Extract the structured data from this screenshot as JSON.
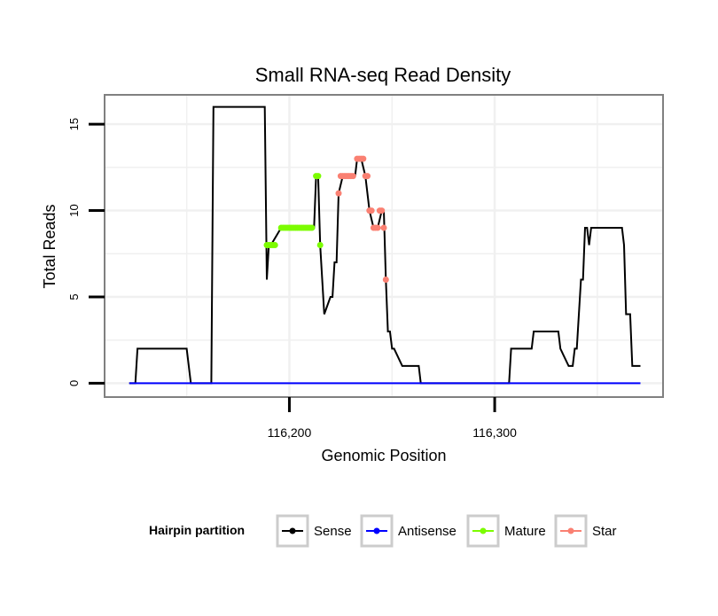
{
  "chart_data": {
    "type": "line",
    "title": "Small RNA-seq Read Density",
    "xlabel": "Genomic Position",
    "ylabel": "Total Reads",
    "xlim": [
      116110,
      116382
    ],
    "ylim": [
      -0.8,
      16.7
    ],
    "xticks": [
      116200,
      116300
    ],
    "xtick_labels": [
      "116,200",
      "116,300"
    ],
    "yticks": [
      0,
      5,
      10,
      15
    ],
    "ytick_labels": [
      "0",
      "5",
      "10",
      "15"
    ],
    "grid": true,
    "legend": {
      "title": "Hairpin partition",
      "position": "bottom",
      "entries": [
        "Sense",
        "Antisense",
        "Mature",
        "Star"
      ]
    },
    "colors": {
      "Sense": "#000000",
      "Antisense": "#0000ff",
      "Mature": "#7cfc00",
      "Star": "#fa8072",
      "panel_border": "#808080",
      "grid": "#f0f0f0",
      "legend_key_border": "#cccccc"
    },
    "series": [
      {
        "name": "Sense",
        "style": "line",
        "x": [
          116122,
          116125,
          116126,
          116150,
          116152,
          116162,
          116163,
          116188,
          116189,
          116190,
          116191,
          116196,
          116212,
          116213,
          116214,
          116215,
          116216,
          116217,
          116220,
          116221,
          116222,
          116223,
          116224,
          116226,
          116228,
          116232,
          116233,
          116235,
          116237,
          116239,
          116241,
          116243,
          116245,
          116246,
          116247,
          116248,
          116249,
          116250,
          116251,
          116255,
          116256,
          116263,
          116264,
          116307,
          116308,
          116318,
          116319,
          116331,
          116332,
          116336,
          116337,
          116338,
          116339,
          116340,
          116342,
          116343,
          116344,
          116345,
          116346,
          116347,
          116353,
          116362,
          116363,
          116364,
          116366,
          116367,
          116371
        ],
        "y": [
          0,
          0,
          2,
          2,
          0,
          0,
          16,
          16,
          6,
          8,
          8,
          9,
          9,
          12,
          12,
          8,
          6,
          4,
          5,
          5,
          7,
          7,
          11,
          12,
          12,
          12,
          13,
          13,
          12,
          10,
          9,
          9,
          10,
          10,
          6,
          3,
          3,
          2,
          2,
          1,
          1,
          1,
          0,
          0,
          2,
          2,
          3,
          3,
          2,
          1,
          1,
          1,
          2,
          2,
          6,
          6,
          9,
          9,
          8,
          9,
          9,
          9,
          8,
          4,
          4,
          1,
          1
        ]
      },
      {
        "name": "Antisense",
        "style": "line",
        "x": [
          116122,
          116371
        ],
        "y": [
          0,
          0
        ]
      },
      {
        "name": "Mature",
        "style": "points",
        "x": [
          116189,
          116190,
          116191,
          116192,
          116193,
          116196,
          116197,
          116198,
          116199,
          116200,
          116201,
          116202,
          116203,
          116204,
          116205,
          116206,
          116207,
          116208,
          116209,
          116210,
          116211,
          116213,
          116214,
          116215
        ],
        "y": [
          8,
          8,
          8,
          8,
          8,
          9,
          9,
          9,
          9,
          9,
          9,
          9,
          9,
          9,
          9,
          9,
          9,
          9,
          9,
          9,
          9,
          12,
          12,
          8
        ]
      },
      {
        "name": "Star",
        "style": "points",
        "x": [
          116224,
          116225,
          116226,
          116227,
          116228,
          116229,
          116230,
          116231,
          116233,
          116234,
          116235,
          116236,
          116237,
          116238,
          116239,
          116240,
          116241,
          116242,
          116243,
          116244,
          116245,
          116246,
          116247
        ],
        "y": [
          11,
          12,
          12,
          12,
          12,
          12,
          12,
          12,
          13,
          13,
          13,
          13,
          12,
          12,
          10,
          10,
          9,
          9,
          9,
          10,
          10,
          9,
          6
        ]
      }
    ]
  }
}
